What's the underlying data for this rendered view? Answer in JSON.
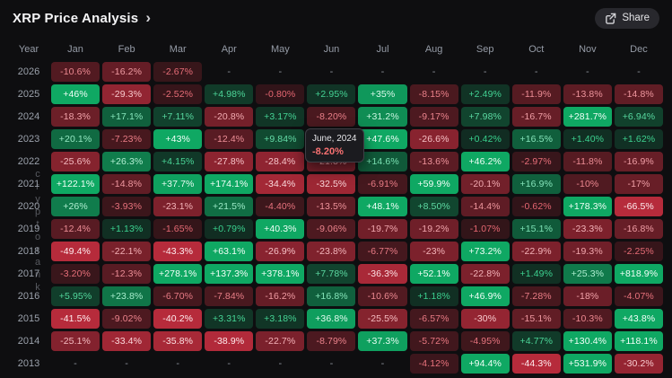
{
  "header": {
    "title": "XRP Price Analysis",
    "chevron": "›",
    "share_label": "Share"
  },
  "watermark": "cryptorank",
  "tooltip": {
    "date": "June, 2024",
    "value": "-8.20%"
  },
  "colors": {
    "pos_bg_low": "#112b21",
    "pos_bg_high": "#0fa863",
    "pos_text_low": "#36d08c",
    "pos_text_high": "#f2fff8",
    "neg_bg_low": "#2e1418",
    "neg_bg_high": "#b62b3b",
    "neg_text_low": "#e5646f",
    "neg_text_high": "#ffeef0",
    "missing_text": "#8b8f98"
  },
  "chart_data": {
    "type": "heatmap",
    "title": "XRP Price Analysis",
    "row_header_label": "Year",
    "missing_label": "-",
    "columns": [
      "Jan",
      "Feb",
      "Mar",
      "Apr",
      "May",
      "Jun",
      "Jul",
      "Aug",
      "Sep",
      "Oct",
      "Nov",
      "Dec"
    ],
    "rows": [
      {
        "year": "2026",
        "values": [
          "-10.6%",
          "-16.2%",
          "-2.67%",
          null,
          null,
          null,
          null,
          null,
          null,
          null,
          null,
          null
        ]
      },
      {
        "year": "2025",
        "values": [
          "+46%",
          "-29.3%",
          "-2.52%",
          "+4.98%",
          "-0.80%",
          "+2.95%",
          "+35%",
          "-8.15%",
          "+2.49%",
          "-11.9%",
          "-13.8%",
          "-14.8%"
        ]
      },
      {
        "year": "2024",
        "values": [
          "-18.3%",
          "+17.1%",
          "+7.11%",
          "-20.8%",
          "+3.17%",
          "-8.20%",
          "+31.2%",
          "-9.17%",
          "+7.98%",
          "-16.7%",
          "+281.7%",
          "+6.94%"
        ]
      },
      {
        "year": "2023",
        "values": [
          "+20.1%",
          "-7.23%",
          "+43%",
          "-12.4%",
          "+9.84%",
          null,
          "+47.6%",
          "-26.6%",
          "+0.42%",
          "+16.5%",
          "+1.40%",
          "+1.62%"
        ]
      },
      {
        "year": "2022",
        "values": [
          "-25.6%",
          "+26.3%",
          "+4.15%",
          "-27.8%",
          "-28.4%",
          "-21.3%",
          "+14.6%",
          "-13.6%",
          "+46.2%",
          "-2.97%",
          "-11.8%",
          "-16.9%"
        ]
      },
      {
        "year": "2021",
        "values": [
          "+122.1%",
          "-14.8%",
          "+37.7%",
          "+174.1%",
          "-34.4%",
          "-32.5%",
          "-6.91%",
          "+59.9%",
          "-20.1%",
          "+16.9%",
          "-10%",
          "-17%"
        ]
      },
      {
        "year": "2020",
        "values": [
          "+26%",
          "-3.93%",
          "-23.1%",
          "+21.5%",
          "-4.40%",
          "-13.5%",
          "+48.1%",
          "+8.50%",
          "-14.4%",
          "-0.62%",
          "+178.3%",
          "-66.5%"
        ]
      },
      {
        "year": "2019",
        "values": [
          "-12.4%",
          "+1.13%",
          "-1.65%",
          "+0.79%",
          "+40.3%",
          "-9.06%",
          "-19.7%",
          "-19.2%",
          "-1.07%",
          "+15.1%",
          "-23.3%",
          "-16.8%"
        ]
      },
      {
        "year": "2018",
        "values": [
          "-49.4%",
          "-22.1%",
          "-43.3%",
          "+63.1%",
          "-26.9%",
          "-23.8%",
          "-6.77%",
          "-23%",
          "+73.2%",
          "-22.9%",
          "-19.3%",
          "-2.25%"
        ]
      },
      {
        "year": "2017",
        "values": [
          "-3.20%",
          "-12.3%",
          "+278.1%",
          "+137.3%",
          "+378.1%",
          "+7.78%",
          "-36.3%",
          "+52.1%",
          "-22.8%",
          "+1.49%",
          "+25.3%",
          "+818.9%"
        ]
      },
      {
        "year": "2016",
        "values": [
          "+5.95%",
          "+23.8%",
          "-6.70%",
          "-7.84%",
          "-16.2%",
          "+16.8%",
          "-10.6%",
          "+1.18%",
          "+46.9%",
          "-7.28%",
          "-18%",
          "-4.07%"
        ]
      },
      {
        "year": "2015",
        "values": [
          "-41.5%",
          "-9.02%",
          "-40.2%",
          "+3.31%",
          "+3.18%",
          "+36.8%",
          "-25.5%",
          "-6.57%",
          "-30%",
          "-15.1%",
          "-10.3%",
          "+43.8%"
        ]
      },
      {
        "year": "2014",
        "values": [
          "-25.1%",
          "-33.4%",
          "-35.8%",
          "-38.9%",
          "-22.7%",
          "-8.79%",
          "+37.3%",
          "-5.72%",
          "-4.95%",
          "+4.77%",
          "+130.4%",
          "+118.1%"
        ]
      },
      {
        "year": "2013",
        "values": [
          null,
          null,
          null,
          null,
          null,
          null,
          null,
          "-4.12%",
          "+94.4%",
          "-44.3%",
          "+531.9%",
          "-30.2%"
        ]
      }
    ]
  }
}
